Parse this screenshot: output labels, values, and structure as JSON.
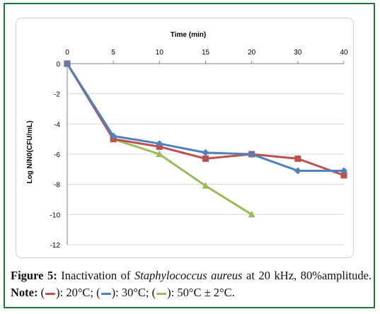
{
  "chart_data": {
    "type": "line",
    "title": "Time (min)",
    "xlabel": "Time (min)",
    "ylabel": "Log N/N0(CFU/mL)",
    "x": [
      "0",
      "5",
      "10",
      "15",
      "20",
      "30",
      "40"
    ],
    "y_ticks": [
      "0",
      "-2",
      "-4",
      "-6",
      "-8",
      "-10",
      "-12"
    ],
    "ylim": [
      -12,
      0
    ],
    "grid": true,
    "x_axis_position": "top",
    "series": [
      {
        "color": "#c0504d",
        "marker": "square",
        "values": [
          0,
          -5.0,
          -5.5,
          -6.3,
          -6.0,
          -6.3,
          -7.4
        ]
      },
      {
        "color": "#4f81bd",
        "marker": "diamond",
        "values": [
          0,
          -4.8,
          -5.3,
          -5.9,
          -6.0,
          -7.1,
          -7.1
        ]
      },
      {
        "color": "#9bbb59",
        "marker": "triangle",
        "values": [
          0,
          -5.0,
          -6.0,
          -8.1,
          -10.0,
          null,
          null
        ]
      }
    ]
  },
  "caption": {
    "figure_label": "Figure 5:",
    "text_before": "Inactivation of",
    "species": "Staphylococcus aureus",
    "text_after": "at 20 kHz, 80%amplitude.",
    "note_label": "Note:",
    "legend_20": "): 20°C; (",
    "legend_30": "): 30°C; (",
    "legend_50": "): 50°C ± 2°C."
  }
}
